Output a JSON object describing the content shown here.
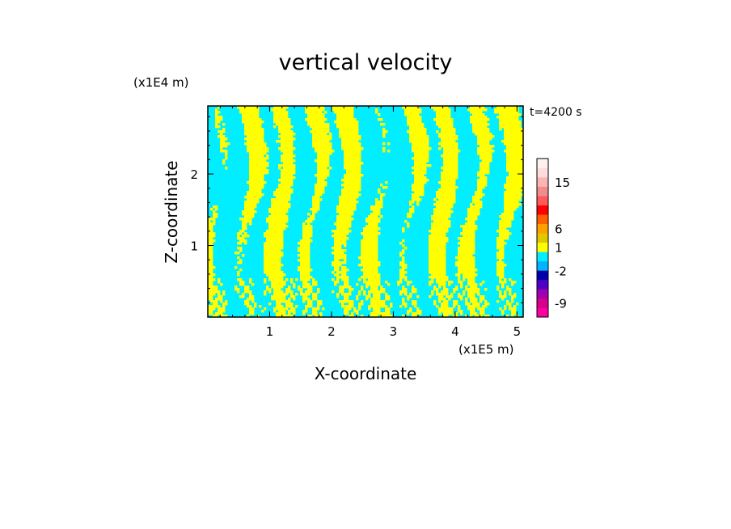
{
  "chart_data": {
    "type": "heatmap",
    "title": "vertical velocity",
    "xlabel": "X-coordinate",
    "ylabel": "Z-coordinate",
    "x_unit": "(x1E5 m)",
    "y_unit": "(x1E4 m)",
    "time_label": "t=4200 s",
    "x_range": [
      0,
      5.1
    ],
    "y_range": [
      0,
      2.95
    ],
    "x_ticks": [
      1,
      2,
      3,
      4,
      5
    ],
    "y_ticks": [
      1,
      2
    ],
    "field_levels": {
      "below_zero": "#00eeff",
      "above_zero": "#ffff00"
    },
    "colorbar": {
      "colors": [
        "#ff00a0",
        "#d8008c",
        "#a000b0",
        "#5000c8",
        "#0000aa",
        "#00b4ff",
        "#00eeff",
        "#ffff00",
        "#e0c800",
        "#ffa000",
        "#ff6000",
        "#ff0000",
        "#ff5a5a",
        "#f08c8c",
        "#ffb4b4",
        "#ffdcdc",
        "#fff0f0"
      ],
      "tick_labels": [
        "-9",
        "-2",
        "1",
        "6",
        "15"
      ],
      "tick_level_index": [
        1.5,
        5,
        7.5,
        9.5,
        14.5
      ]
    }
  }
}
